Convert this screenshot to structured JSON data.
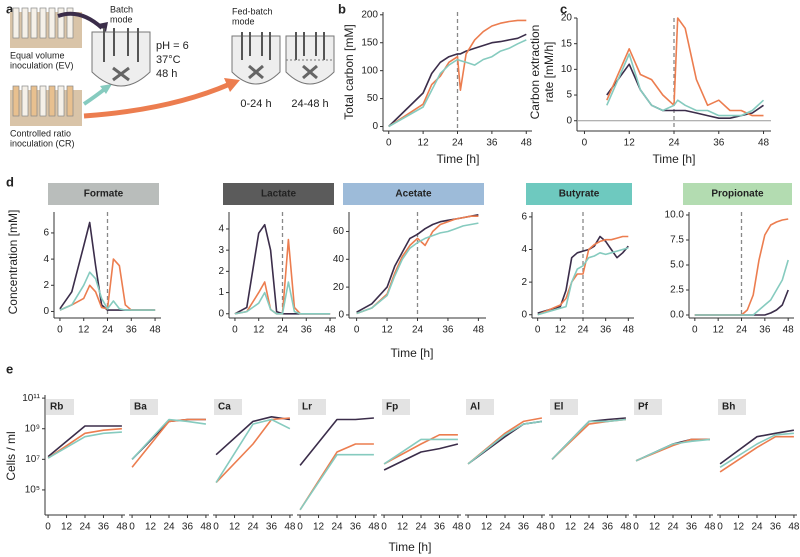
{
  "schematic": {
    "label": "a",
    "ev": [
      "Equal volume",
      "inoculation (EV)"
    ],
    "batch": [
      "Batch",
      "mode"
    ],
    "conditions": [
      "pH = 6",
      "37°C",
      "48 h"
    ],
    "cr": [
      "Controlled ratio",
      "inoculation (CR)"
    ],
    "fed_batch": [
      "Fed-batch",
      "mode"
    ],
    "phases": [
      "0-24 h",
      "24-48 h"
    ]
  },
  "panel_d": {
    "label": "d",
    "ylabel": "Concentration [mM]",
    "xlabel": "Time [h]"
  },
  "panel_e": {
    "label": "e",
    "ylabel": "Cells / ml",
    "xlabel": "Time [h]",
    "log": true,
    "ylim": [
      2300,
      160000000000
    ],
    "yticks": [
      {
        "value": 100000,
        "label": "10⁵"
      },
      {
        "value": 10000000,
        "label": "10⁷"
      },
      {
        "value": 1000000000,
        "label": "10⁹"
      },
      {
        "value": 100000000000,
        "label": "10¹¹"
      }
    ]
  },
  "chart_data": [
    {
      "type": "line",
      "panel": "b",
      "ylabel": "Total carbon [mM]",
      "xlabel": "Time [h]",
      "xlim": [
        -2,
        50
      ],
      "ylim": [
        -8,
        205
      ],
      "xticks": [
        0,
        12,
        24,
        36,
        48
      ],
      "yticks": [
        0,
        50,
        100,
        150,
        200
      ],
      "vline": 24,
      "x": [
        0,
        12,
        15,
        18,
        21,
        24,
        25,
        27,
        30,
        33,
        36,
        39,
        42,
        45,
        48
      ],
      "series": [
        {
          "color": "#3b2d4a",
          "values": [
            0,
            60,
            95,
            115,
            125,
            130,
            130,
            135,
            140,
            145,
            150,
            152,
            155,
            158,
            165
          ]
        },
        {
          "color": "#ec7d4f",
          "values": [
            0,
            40,
            75,
            90,
            115,
            125,
            65,
            130,
            155,
            170,
            180,
            185,
            188,
            190,
            190
          ]
        },
        {
          "color": "#86cbbf",
          "values": [
            0,
            35,
            65,
            95,
            110,
            120,
            118,
            115,
            110,
            120,
            125,
            135,
            140,
            148,
            155
          ]
        }
      ]
    },
    {
      "type": "line",
      "panel": "c",
      "ylabel": [
        "Carbon extraction",
        "rate [mM/h]"
      ],
      "xlabel": "Time [h]",
      "xlim": [
        -2,
        50
      ],
      "ylim": [
        -2,
        20
      ],
      "xticks": [
        0,
        12,
        24,
        36,
        48
      ],
      "yticks": [
        0,
        5,
        10,
        15,
        20
      ],
      "vline": 24,
      "hline": 0,
      "x": [
        6,
        12,
        15,
        18,
        21,
        24,
        25,
        27,
        30,
        33,
        36,
        39,
        42,
        45,
        48
      ],
      "series": [
        {
          "color": "#3b2d4a",
          "values": [
            5,
            11,
            6,
            3,
            2,
            2,
            2,
            2,
            1.5,
            1,
            0.5,
            0.5,
            1,
            1.5,
            3
          ]
        },
        {
          "color": "#ec7d4f",
          "values": [
            4,
            14,
            9,
            8,
            5,
            3,
            20,
            18,
            8,
            3,
            4,
            2,
            2,
            1,
            1
          ]
        },
        {
          "color": "#86cbbf",
          "values": [
            3,
            13,
            6,
            3,
            2,
            3,
            4,
            3,
            2,
            2,
            1,
            1,
            1,
            2,
            4
          ]
        }
      ]
    },
    {
      "type": "line",
      "title": "Formate",
      "header_color": "#b9bdbb",
      "xlim": [
        -3,
        51
      ],
      "ylim": [
        -0.5,
        7.6
      ],
      "xticks": [
        0,
        12,
        24,
        36,
        48
      ],
      "yticks": [
        0,
        2,
        4,
        6
      ],
      "vline": 24,
      "x": [
        0,
        6,
        12,
        15,
        18,
        21,
        24,
        27,
        30,
        33,
        36,
        39,
        42,
        45,
        48
      ],
      "series": [
        {
          "color": "#3b2d4a",
          "values": [
            0.2,
            1.5,
            5,
            6.8,
            3.5,
            0.5,
            0.1,
            0.1,
            0.1,
            0.1,
            0.1,
            0.1,
            0.1,
            0.1,
            0.1
          ]
        },
        {
          "color": "#ec7d4f",
          "values": [
            0.1,
            0.5,
            1,
            2,
            1.5,
            0.3,
            0.2,
            4,
            3.5,
            0.5,
            0.1,
            0.1,
            0.1,
            0.1,
            0.1
          ]
        },
        {
          "color": "#86cbbf",
          "values": [
            0.1,
            0.5,
            2,
            3,
            2.5,
            1,
            0.2,
            0.8,
            0.2,
            0.1,
            0.1,
            0.1,
            0.1,
            0.1,
            0.1
          ]
        }
      ]
    },
    {
      "type": "line",
      "title": "Lactate",
      "header_color": "#5b5b5b",
      "title_color": "#ffffff",
      "xlim": [
        -3,
        51
      ],
      "ylim": [
        -0.2,
        4.8
      ],
      "xticks": [
        0,
        12,
        24,
        36,
        48
      ],
      "yticks": [
        0,
        1,
        2,
        3,
        4
      ],
      "vline": 24,
      "x": [
        0,
        6,
        12,
        15,
        18,
        21,
        24,
        27,
        30,
        33,
        36,
        39,
        42,
        45,
        48
      ],
      "series": [
        {
          "color": "#3b2d4a",
          "values": [
            0,
            0.3,
            3.8,
            4.2,
            3,
            0.1,
            0,
            0,
            0,
            0,
            0,
            0,
            0,
            0,
            0
          ]
        },
        {
          "color": "#ec7d4f",
          "values": [
            0,
            0.1,
            1,
            1.5,
            0.2,
            0,
            0,
            3.5,
            0.3,
            0,
            0,
            0,
            0,
            0,
            0
          ]
        },
        {
          "color": "#86cbbf",
          "values": [
            0,
            0.1,
            0.5,
            1,
            0.2,
            0,
            0,
            1.5,
            0.1,
            0,
            0,
            0,
            0,
            0,
            0
          ]
        }
      ]
    },
    {
      "type": "line",
      "title": "Acetate",
      "header_color": "#9dbbd9",
      "xlim": [
        -3,
        51
      ],
      "ylim": [
        -2.2,
        74
      ],
      "xticks": [
        0,
        12,
        24,
        36,
        48
      ],
      "yticks": [
        0,
        20,
        40,
        60
      ],
      "vline": 24,
      "x": [
        0,
        6,
        12,
        15,
        18,
        21,
        24,
        27,
        30,
        33,
        36,
        39,
        42,
        45,
        48
      ],
      "series": [
        {
          "color": "#3b2d4a",
          "values": [
            2,
            8,
            20,
            35,
            45,
            55,
            58,
            62,
            65,
            67,
            68,
            69,
            70,
            71,
            72
          ]
        },
        {
          "color": "#ec7d4f",
          "values": [
            1,
            5,
            15,
            30,
            42,
            50,
            55,
            50,
            60,
            65,
            67,
            69,
            70,
            71,
            71
          ]
        },
        {
          "color": "#86cbbf",
          "values": [
            1,
            5,
            14,
            28,
            40,
            48,
            52,
            55,
            57,
            59,
            60,
            62,
            64,
            65,
            66
          ]
        }
      ]
    },
    {
      "type": "line",
      "title": "Butyrate",
      "header_color": "#6ec9bf",
      "xlim": [
        -3,
        51
      ],
      "ylim": [
        -0.2,
        6.3
      ],
      "xticks": [
        0,
        12,
        24,
        36,
        48
      ],
      "yticks": [
        0,
        2,
        4,
        6
      ],
      "vline": 24,
      "x": [
        0,
        6,
        12,
        15,
        18,
        21,
        24,
        27,
        30,
        33,
        36,
        39,
        42,
        45,
        48
      ],
      "series": [
        {
          "color": "#3b2d4a",
          "values": [
            0.1,
            0.3,
            0.5,
            1.5,
            3.5,
            3.8,
            3.9,
            4,
            4.2,
            4.8,
            4.5,
            4,
            3.5,
            3.8,
            4.2
          ]
        },
        {
          "color": "#ec7d4f",
          "values": [
            0,
            0.3,
            0.6,
            1,
            2,
            2.5,
            2.5,
            4,
            4.3,
            4.5,
            4.6,
            4.6,
            4.7,
            4.8,
            4.8
          ]
        },
        {
          "color": "#86cbbf",
          "values": [
            0,
            0.2,
            0.4,
            0.5,
            2,
            2.8,
            3,
            3.5,
            3.6,
            3.8,
            3.7,
            3.8,
            3.9,
            4,
            4.1
          ]
        }
      ]
    },
    {
      "type": "line",
      "title": "Propionate",
      "header_color": "#b3dcb1",
      "xlim": [
        -3,
        51
      ],
      "ylim": [
        -0.3,
        10.3
      ],
      "xticks": [
        0,
        12,
        24,
        36,
        48
      ],
      "yticks": [
        {
          "value": 0,
          "label": "0.0"
        },
        2.5,
        {
          "value": 5,
          "label": "5.0"
        },
        7.5,
        {
          "value": 10,
          "label": "10.0"
        }
      ],
      "vline": 24,
      "x": [
        0,
        6,
        12,
        15,
        18,
        21,
        24,
        27,
        30,
        33,
        36,
        39,
        42,
        45,
        48
      ],
      "series": [
        {
          "color": "#3b2d4a",
          "values": [
            0,
            0,
            0,
            0,
            0,
            0,
            0,
            0,
            0,
            0,
            0,
            0.2,
            0.5,
            1,
            2.5
          ]
        },
        {
          "color": "#ec7d4f",
          "values": [
            0,
            0,
            0,
            0,
            0,
            0,
            0,
            0.5,
            2,
            5.5,
            8,
            9,
            9.3,
            9.5,
            9.6
          ]
        },
        {
          "color": "#86cbbf",
          "values": [
            0,
            0,
            0,
            0,
            0,
            0,
            0,
            0,
            0,
            0.5,
            1,
            1.5,
            2.5,
            3.5,
            5.5
          ]
        }
      ]
    },
    {
      "type": "line",
      "title": "Rb",
      "xlim": [
        -2,
        50
      ],
      "xticks": [
        0,
        12,
        24,
        36,
        48
      ],
      "x": [
        0,
        24,
        36,
        48
      ],
      "series": [
        {
          "color": "#3b2d4a",
          "values": [
            15000000,
            1500000000,
            1500000000,
            1500000000
          ]
        },
        {
          "color": "#ec7d4f",
          "values": [
            12000000,
            500000000,
            800000000,
            1000000000
          ]
        },
        {
          "color": "#86cbbf",
          "values": [
            12000000,
            300000000,
            500000000,
            600000000
          ]
        }
      ]
    },
    {
      "type": "line",
      "title": "Ba",
      "xlim": [
        -2,
        50
      ],
      "xticks": [
        0,
        12,
        24,
        36,
        48
      ],
      "x": [
        0,
        24,
        36,
        48
      ],
      "series": [
        {
          "color": "#3b2d4a",
          "values": [
            10000000,
            3000000000,
            4000000000,
            4000000000
          ]
        },
        {
          "color": "#ec7d4f",
          "values": [
            3000000,
            3000000000,
            4000000000,
            4000000000
          ]
        },
        {
          "color": "#86cbbf",
          "values": [
            10000000,
            4000000000,
            3000000000,
            2000000000
          ]
        }
      ]
    },
    {
      "type": "line",
      "title": "Ca",
      "xlim": [
        -2,
        50
      ],
      "xticks": [
        0,
        12,
        24,
        36,
        48
      ],
      "x": [
        0,
        24,
        36,
        48
      ],
      "series": [
        {
          "color": "#3b2d4a",
          "values": [
            20000000,
            3000000000,
            6000000000,
            4000000000
          ]
        },
        {
          "color": "#ec7d4f",
          "values": [
            300000,
            100000000,
            4000000000,
            5000000000
          ]
        },
        {
          "color": "#86cbbf",
          "values": [
            300000,
            2000000000,
            4000000000,
            1000000000
          ]
        }
      ]
    },
    {
      "type": "line",
      "title": "Lr",
      "xlim": [
        -2,
        50
      ],
      "xticks": [
        0,
        12,
        24,
        36,
        48
      ],
      "x": [
        0,
        24,
        36,
        48
      ],
      "series": [
        {
          "color": "#3b2d4a",
          "values": [
            4000000,
            4000000000,
            4000000000,
            5000000000
          ]
        },
        {
          "color": "#ec7d4f",
          "values": [
            5000,
            30000000,
            100000000,
            100000000
          ]
        },
        {
          "color": "#86cbbf",
          "values": [
            5000,
            20000000,
            20000000,
            20000000
          ]
        }
      ]
    },
    {
      "type": "line",
      "title": "Fp",
      "xlim": [
        -2,
        50
      ],
      "xticks": [
        0,
        12,
        24,
        36,
        48
      ],
      "x": [
        0,
        24,
        36,
        48
      ],
      "series": [
        {
          "color": "#3b2d4a",
          "values": [
            2000000,
            30000000,
            50000000,
            100000000
          ]
        },
        {
          "color": "#ec7d4f",
          "values": [
            5000000,
            100000000,
            400000000,
            400000000
          ]
        },
        {
          "color": "#86cbbf",
          "values": [
            5000000,
            200000000,
            200000000,
            200000000
          ]
        }
      ]
    },
    {
      "type": "line",
      "title": "Al",
      "xlim": [
        -2,
        50
      ],
      "xticks": [
        0,
        12,
        24,
        36,
        48
      ],
      "x": [
        0,
        24,
        36,
        48
      ],
      "series": [
        {
          "color": "#3b2d4a",
          "values": [
            5000000,
            300000000,
            2000000000,
            3000000000
          ]
        },
        {
          "color": "#ec7d4f",
          "values": [
            5000000,
            500000000,
            3000000000,
            5000000000
          ]
        },
        {
          "color": "#86cbbf",
          "values": [
            5000000,
            400000000,
            2000000000,
            3000000000
          ]
        }
      ]
    },
    {
      "type": "line",
      "title": "El",
      "xlim": [
        -2,
        50
      ],
      "xticks": [
        0,
        12,
        24,
        36,
        48
      ],
      "x": [
        0,
        24,
        36,
        48
      ],
      "series": [
        {
          "color": "#3b2d4a",
          "values": [
            10000000,
            3000000000,
            4000000000,
            5000000000
          ]
        },
        {
          "color": "#ec7d4f",
          "values": [
            10000000,
            2000000000,
            3000000000,
            4000000000
          ]
        },
        {
          "color": "#86cbbf",
          "values": [
            10000000,
            3000000000,
            3000000000,
            4000000000
          ]
        }
      ]
    },
    {
      "type": "line",
      "title": "Pf",
      "xlim": [
        -2,
        50
      ],
      "xticks": [
        0,
        12,
        24,
        36,
        48
      ],
      "x": [
        0,
        24,
        36,
        48
      ],
      "series": [
        {
          "color": "#3b2d4a",
          "values": [
            8000000,
            100000000,
            200000000,
            200000000
          ]
        },
        {
          "color": "#ec7d4f",
          "values": [
            8000000,
            80000000,
            200000000,
            200000000
          ]
        },
        {
          "color": "#86cbbf",
          "values": [
            8000000,
            100000000,
            150000000,
            200000000
          ]
        }
      ]
    },
    {
      "type": "line",
      "title": "Bh",
      "xlim": [
        -2,
        50
      ],
      "xticks": [
        0,
        12,
        24,
        36,
        48
      ],
      "x": [
        0,
        24,
        36,
        48
      ],
      "series": [
        {
          "color": "#3b2d4a",
          "values": [
            5000000,
            300000000,
            500000000,
            800000000
          ]
        },
        {
          "color": "#ec7d4f",
          "values": [
            1500000,
            60000000,
            300000000,
            300000000
          ]
        },
        {
          "color": "#86cbbf",
          "values": [
            3000000,
            100000000,
            400000000,
            500000000
          ]
        }
      ]
    }
  ]
}
